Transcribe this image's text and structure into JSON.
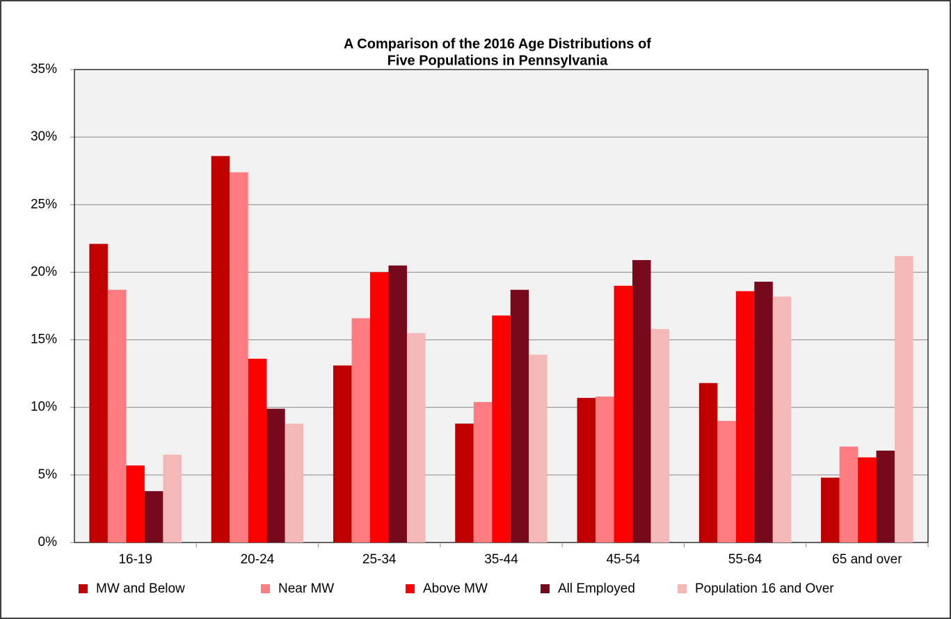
{
  "chart_data": {
    "type": "bar",
    "title": "A Comparison of the 2016 Age Distributions of",
    "subtitle": "Five Populations in Pennsylvania",
    "categories": [
      "16-19",
      "20-24",
      "25-34",
      "35-44",
      "45-54",
      "55-64",
      "65 and over"
    ],
    "series": [
      {
        "name": "MW and Below",
        "color": "#c00000",
        "values": [
          22.1,
          28.6,
          13.1,
          8.8,
          10.7,
          11.8,
          4.8
        ]
      },
      {
        "name": "Near MW",
        "color": "#ff7c80",
        "values": [
          18.7,
          27.4,
          16.6,
          10.4,
          10.8,
          9.0,
          7.1
        ]
      },
      {
        "name": "Above MW",
        "color": "#ff0000",
        "values": [
          5.7,
          13.6,
          20.0,
          16.8,
          19.0,
          18.6,
          6.3
        ]
      },
      {
        "name": "All Employed",
        "color": "#76091c",
        "values": [
          3.8,
          9.9,
          20.5,
          18.7,
          20.9,
          19.3,
          6.8
        ]
      },
      {
        "name": "Population 16 and Over",
        "color": "#f4b9b7",
        "values": [
          6.5,
          8.8,
          15.5,
          13.9,
          15.8,
          18.2,
          21.2
        ]
      }
    ],
    "ylim": [
      0,
      35
    ],
    "yticks": [
      {
        "value": 0,
        "label": "0%"
      },
      {
        "value": 5,
        "label": "5%"
      },
      {
        "value": 10,
        "label": "10%"
      },
      {
        "value": 15,
        "label": "15%"
      },
      {
        "value": 20,
        "label": "20%"
      },
      {
        "value": 25,
        "label": "25%"
      },
      {
        "value": 30,
        "label": "30%"
      },
      {
        "value": 35,
        "label": "35%"
      }
    ],
    "grid": true,
    "legend": "bottom"
  }
}
